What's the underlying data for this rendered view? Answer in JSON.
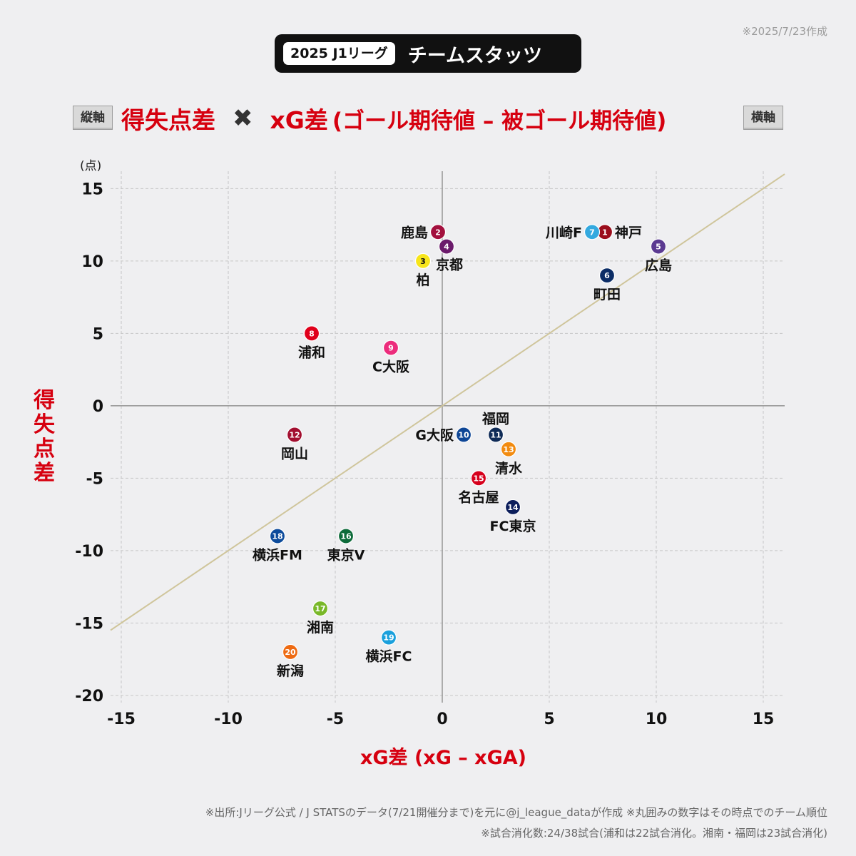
{
  "date": "※2025/7/23作成",
  "header": {
    "league": "2025 J1リーグ",
    "title": "チームスタッツ"
  },
  "title": {
    "vertical_tag": "縦軸",
    "horizontal_tag": "横軸",
    "y_metric": "得失点差",
    "cross": "✖",
    "x_metric": "xG差",
    "x_metric_detail": "(ゴール期待値 – 被ゴール期待値)"
  },
  "chart_data": {
    "type": "scatter",
    "ylabel": "得失点差",
    "ylabel_unit": "(点)",
    "xlabel": "xG差 (xG – xGA)",
    "xlim": [
      -15.5,
      16
    ],
    "ylim": [
      -20.5,
      16.2
    ],
    "xticks": [
      -15,
      -10,
      -5,
      0,
      5,
      10,
      15
    ],
    "yticks": [
      -20,
      -15,
      -10,
      -5,
      0,
      5,
      10,
      15
    ],
    "grid": true,
    "reference_line": "y = x",
    "points": [
      {
        "rank": 1,
        "team": "神戸",
        "x": 7.6,
        "y": 12,
        "color": "#9b0d1c",
        "label_pos": "right"
      },
      {
        "rank": 2,
        "team": "鹿島",
        "x": -0.2,
        "y": 12,
        "color": "#a3103e",
        "label_pos": "left"
      },
      {
        "rank": 3,
        "team": "柏",
        "x": -0.9,
        "y": 10,
        "color": "#f7e51b",
        "label_pos": "below",
        "num_color": "#111"
      },
      {
        "rank": 4,
        "team": "京都",
        "x": 0.2,
        "y": 11,
        "color": "#6b1b6b",
        "label_pos": "below-right"
      },
      {
        "rank": 5,
        "team": "広島",
        "x": 10.1,
        "y": 11,
        "color": "#5b3a91",
        "label_pos": "below"
      },
      {
        "rank": 6,
        "team": "町田",
        "x": 7.7,
        "y": 9,
        "color": "#0c2d66",
        "label_pos": "below"
      },
      {
        "rank": 7,
        "team": "川崎F",
        "x": 7,
        "y": 12,
        "color": "#34a9df",
        "label_pos": "left"
      },
      {
        "rank": 8,
        "team": "浦和",
        "x": -6.1,
        "y": 5,
        "color": "#e0001b",
        "label_pos": "below"
      },
      {
        "rank": 9,
        "team": "C大阪",
        "x": -2.4,
        "y": 4,
        "color": "#ec2c7c",
        "label_pos": "below"
      },
      {
        "rank": 10,
        "team": "G大阪",
        "x": 1,
        "y": -2,
        "color": "#0e4696",
        "label_pos": "left"
      },
      {
        "rank": 11,
        "team": "福岡",
        "x": 2.5,
        "y": -2,
        "color": "#0f2b57",
        "label_pos": "above"
      },
      {
        "rank": 12,
        "team": "岡山",
        "x": -6.9,
        "y": -2,
        "color": "#a20e2f",
        "label_pos": "below"
      },
      {
        "rank": 13,
        "team": "清水",
        "x": 3.1,
        "y": -3,
        "color": "#f28b10",
        "label_pos": "below"
      },
      {
        "rank": 14,
        "team": "FC東京",
        "x": 3.3,
        "y": -7,
        "color": "#0d1f5c",
        "label_pos": "below"
      },
      {
        "rank": 15,
        "team": "名古屋",
        "x": 1.7,
        "y": -5,
        "color": "#d6001c",
        "label_pos": "below"
      },
      {
        "rank": 16,
        "team": "東京V",
        "x": -4.5,
        "y": -9,
        "color": "#0d6b3a",
        "label_pos": "below"
      },
      {
        "rank": 17,
        "team": "湘南",
        "x": -5.7,
        "y": -14,
        "color": "#79b829",
        "label_pos": "below"
      },
      {
        "rank": 18,
        "team": "横浜FM",
        "x": -7.7,
        "y": -9,
        "color": "#0d4b9b",
        "label_pos": "below"
      },
      {
        "rank": 19,
        "team": "横浜FC",
        "x": -2.5,
        "y": -16,
        "color": "#1aa0dc",
        "label_pos": "below"
      },
      {
        "rank": 20,
        "team": "新潟",
        "x": -7.1,
        "y": -17,
        "color": "#ee6a12",
        "label_pos": "below"
      }
    ]
  },
  "footer": {
    "source": "※出所:Jリーグ公式 / J STATSのデータ(7/21開催分まで)を元に@j_league_dataが作成 ※丸囲みの数字はその時点でのチーム順位",
    "games": "※試合消化数:24/38試合(浦和は22試合消化。湘南・福岡は23試合消化)"
  }
}
